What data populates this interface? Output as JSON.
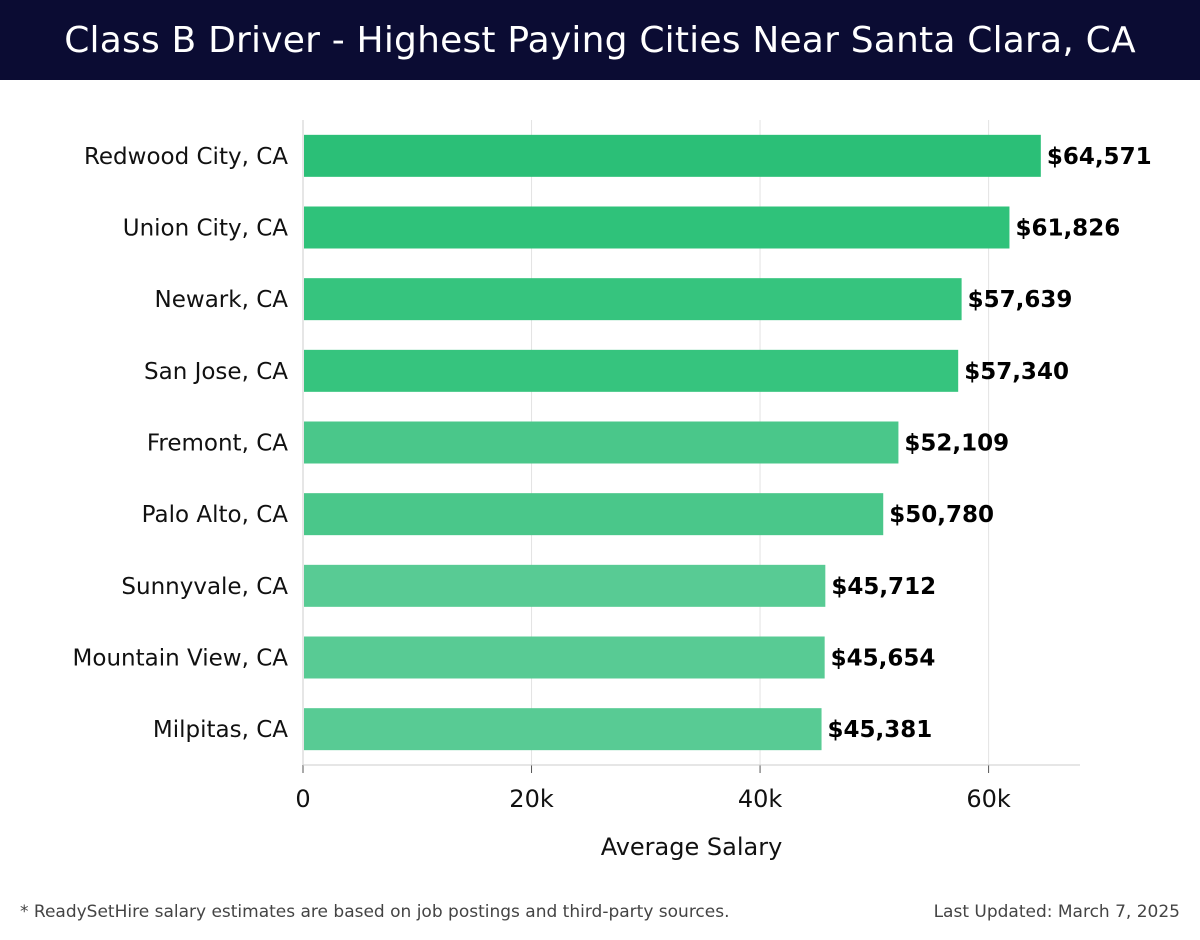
{
  "header": {
    "title": "Class B Driver - Highest Paying Cities Near Santa Clara, CA",
    "background": "#0b0c33"
  },
  "footer": {
    "note": "* ReadySetHire salary estimates are based on job postings and third-party sources.",
    "updated": "Last Updated: March 7, 2025"
  },
  "chart_data": {
    "type": "bar",
    "orientation": "horizontal",
    "title": "Class B Driver - Highest Paying Cities Near Santa Clara, CA",
    "xlabel": "Average Salary",
    "ylabel": "",
    "xlim": [
      0,
      68000
    ],
    "x_ticks": [
      0,
      20000,
      40000,
      60000
    ],
    "x_tick_labels": [
      "0",
      "20k",
      "40k",
      "60k"
    ],
    "grid": "vertical",
    "categories": [
      "Redwood City, CA",
      "Union City, CA",
      "Newark, CA",
      "San Jose, CA",
      "Fremont, CA",
      "Palo Alto, CA",
      "Sunnyvale, CA",
      "Mountain View, CA",
      "Milpitas, CA"
    ],
    "values": [
      64571,
      61826,
      57639,
      57340,
      52109,
      50780,
      45712,
      45654,
      45381
    ],
    "value_labels": [
      "$64,571",
      "$61,826",
      "$57,639",
      "$57,340",
      "$52,109",
      "$50,780",
      "$45,712",
      "$45,654",
      "$45,381"
    ],
    "bar_colors": [
      "#2bbf77",
      "#2fc27a",
      "#36c47e",
      "#36c47e",
      "#4ac78a",
      "#4ac78a",
      "#58cb94",
      "#58cb94",
      "#58cb94"
    ]
  }
}
